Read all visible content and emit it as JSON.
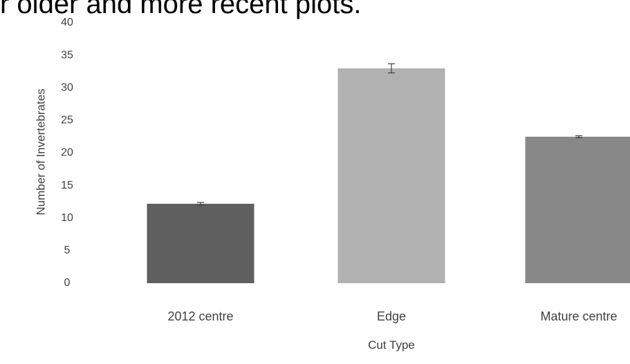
{
  "heading_fragment": "r older and more recent plots.",
  "chart_data": {
    "type": "bar",
    "title": "",
    "xlabel": "Cut Type",
    "ylabel": "Number of Invertebrates",
    "categories": [
      "2012 centre",
      "Edge",
      "Mature centre"
    ],
    "values": [
      12.2,
      33.0,
      22.5
    ],
    "error": [
      0.2,
      0.7,
      0.15
    ],
    "colors": [
      "#5f5f5f",
      "#b1b1b1",
      "#888888"
    ],
    "ylim": [
      0,
      40
    ],
    "yticks": [
      "0",
      "5",
      "10",
      "15",
      "20",
      "25",
      "30",
      "35",
      "40"
    ],
    "grid": false,
    "legend": "none"
  }
}
